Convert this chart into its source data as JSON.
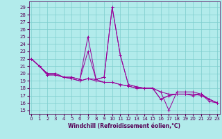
{
  "xlabel": "Windchill (Refroidissement éolien,°C)",
  "bg_color": "#b2ebeb",
  "grid_color": "#7ecece",
  "line_color": "#990099",
  "x_ticks": [
    0,
    1,
    2,
    3,
    4,
    5,
    6,
    7,
    8,
    9,
    10,
    11,
    12,
    13,
    14,
    15,
    16,
    17,
    18,
    19,
    20,
    21,
    22,
    23
  ],
  "y_ticks": [
    15,
    16,
    17,
    18,
    19,
    20,
    21,
    22,
    23,
    24,
    25,
    26,
    27,
    28,
    29
  ],
  "xlim": [
    -0.3,
    23.3
  ],
  "ylim": [
    14.5,
    29.8
  ],
  "series": [
    [
      22,
      21,
      20,
      20,
      19.5,
      19.5,
      19.2,
      23,
      19.2,
      19.5,
      29,
      22.5,
      18.5,
      18.2,
      18,
      18,
      17.5,
      17.2,
      17.2,
      17.2,
      17.2,
      17,
      16.5,
      16
    ],
    [
      22,
      21,
      20,
      20,
      19.5,
      19.5,
      19.2,
      25,
      19.2,
      19.5,
      29,
      22.5,
      18.5,
      18.2,
      18,
      18,
      17.5,
      15,
      17.5,
      17.5,
      17.5,
      17.2,
      16.2,
      16
    ],
    [
      22,
      21,
      19.8,
      19.8,
      19.5,
      19.3,
      19,
      19.3,
      19,
      18.8,
      18.8,
      18.5,
      18.3,
      18,
      18,
      18,
      16.5,
      17,
      17.2,
      17.2,
      17,
      17.2,
      16.5,
      16
    ],
    [
      22,
      21,
      19.8,
      19.8,
      19.5,
      19.3,
      19,
      19.3,
      19.2,
      18.8,
      18.8,
      18.5,
      18.3,
      18,
      18,
      18,
      16.5,
      17,
      17.2,
      17.2,
      17.2,
      17.2,
      16.5,
      16
    ]
  ],
  "tick_fontsize": 5,
  "xlabel_fontsize": 5.5,
  "tick_color": "#550055",
  "xlabel_color": "#550055"
}
